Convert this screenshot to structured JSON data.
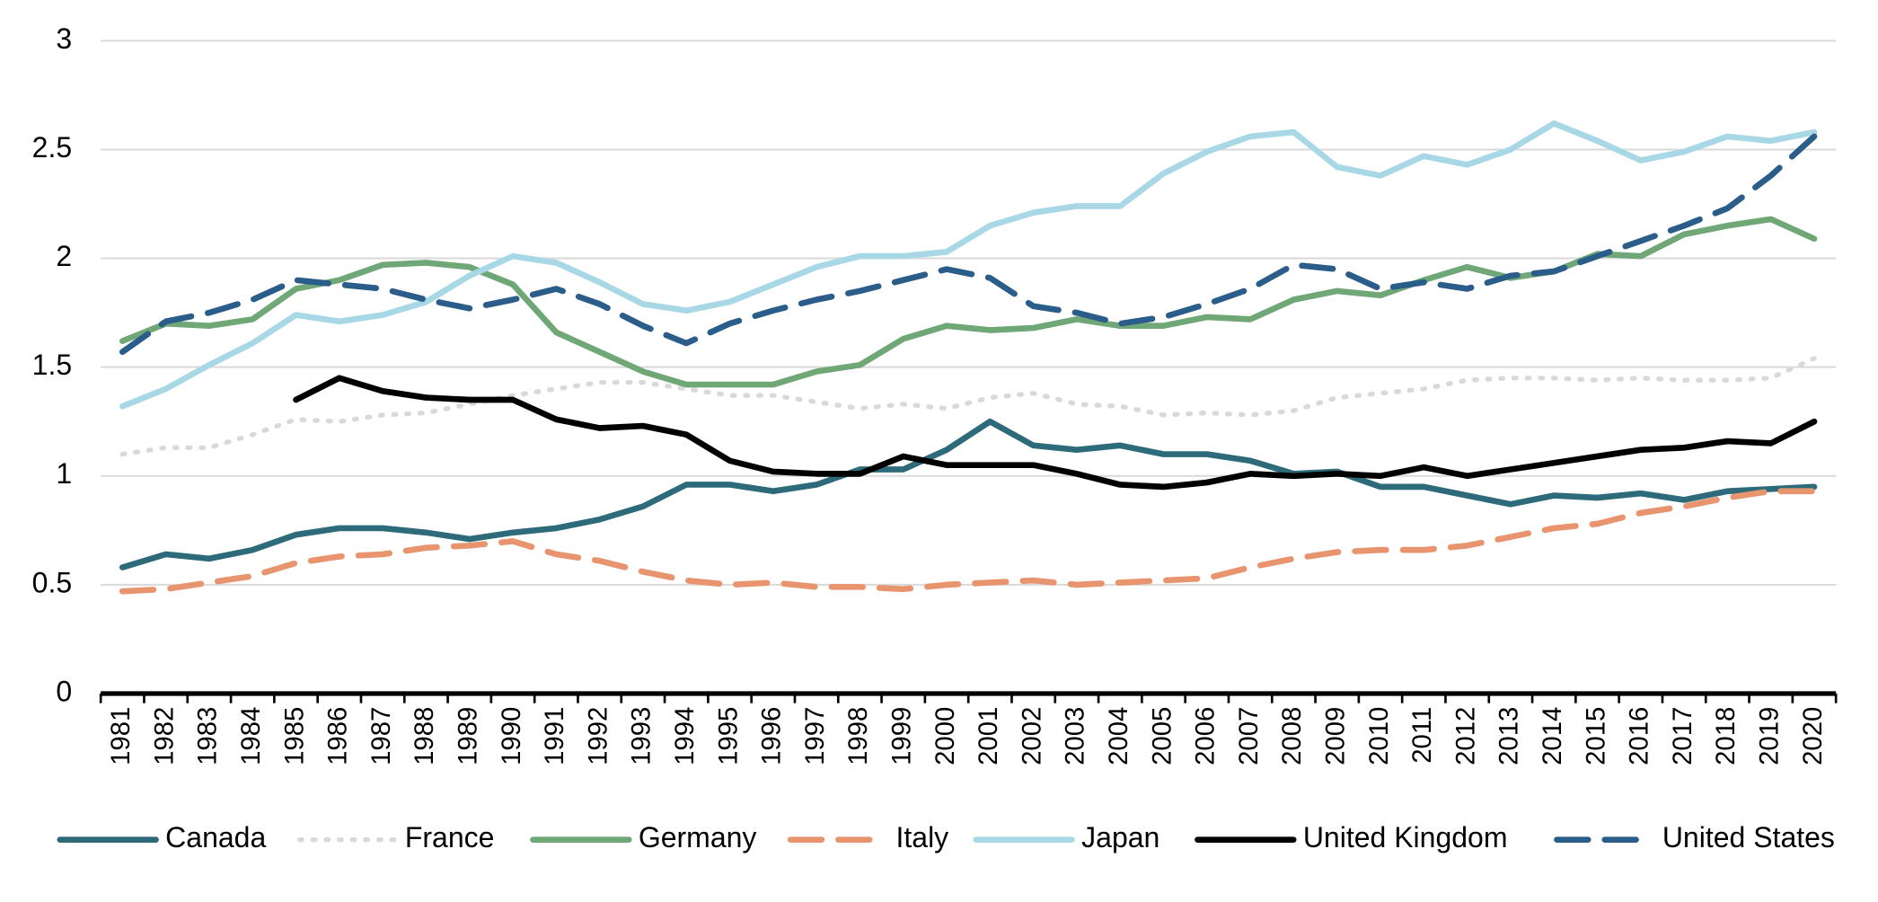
{
  "chart_data": {
    "type": "line",
    "categories": [
      "1981",
      "1982",
      "1983",
      "1984",
      "1985",
      "1986",
      "1987",
      "1988",
      "1989",
      "1990",
      "1991",
      "1992",
      "1993",
      "1994",
      "1995",
      "1996",
      "1997",
      "1998",
      "1999",
      "2000",
      "2001",
      "2002",
      "2003",
      "2004",
      "2005",
      "2006",
      "2007",
      "2008",
      "2009",
      "2010",
      "2011",
      "2012",
      "2013",
      "2014",
      "2015",
      "2016",
      "2017",
      "2018",
      "2019",
      "2020"
    ],
    "ylim": [
      0,
      3
    ],
    "yticks": [
      0,
      0.5,
      1,
      1.5,
      2,
      2.5,
      3
    ],
    "grid": true,
    "legend": "bottom",
    "series": [
      {
        "name": "Canada",
        "color": "#2e6b7a",
        "style": "solid",
        "values": [
          0.58,
          0.64,
          0.62,
          0.66,
          0.73,
          0.76,
          0.76,
          0.74,
          0.71,
          0.74,
          0.76,
          0.8,
          0.86,
          0.96,
          0.96,
          0.93,
          0.96,
          1.03,
          1.03,
          1.12,
          1.25,
          1.14,
          1.12,
          1.14,
          1.1,
          1.1,
          1.07,
          1.01,
          1.02,
          0.95,
          0.95,
          0.91,
          0.87,
          0.91,
          0.9,
          0.92,
          0.89,
          0.93,
          0.94,
          0.95
        ]
      },
      {
        "name": "France",
        "color": "#d9d9d9",
        "style": "dotted",
        "values": [
          1.1,
          1.13,
          1.13,
          1.19,
          1.26,
          1.25,
          1.28,
          1.29,
          1.33,
          1.37,
          1.4,
          1.43,
          1.43,
          1.4,
          1.37,
          1.37,
          1.34,
          1.31,
          1.33,
          1.31,
          1.36,
          1.38,
          1.33,
          1.32,
          1.28,
          1.29,
          1.28,
          1.3,
          1.36,
          1.38,
          1.4,
          1.44,
          1.45,
          1.45,
          1.44,
          1.45,
          1.44,
          1.44,
          1.45,
          1.54
        ]
      },
      {
        "name": "Germany",
        "color": "#6fa776",
        "style": "solid",
        "values": [
          1.62,
          1.7,
          1.69,
          1.72,
          1.86,
          1.9,
          1.97,
          1.98,
          1.96,
          1.88,
          1.66,
          1.57,
          1.48,
          1.42,
          1.42,
          1.42,
          1.48,
          1.51,
          1.63,
          1.69,
          1.67,
          1.68,
          1.72,
          1.69,
          1.69,
          1.73,
          1.72,
          1.81,
          1.85,
          1.83,
          1.9,
          1.96,
          1.91,
          1.94,
          2.02,
          2.01,
          2.11,
          2.15,
          2.18,
          2.09
        ]
      },
      {
        "name": "Italy",
        "color": "#e8956f",
        "style": "dashed",
        "values": [
          0.47,
          0.48,
          0.51,
          0.54,
          0.6,
          0.63,
          0.64,
          0.67,
          0.68,
          0.7,
          0.64,
          0.61,
          0.56,
          0.52,
          0.5,
          0.51,
          0.49,
          0.49,
          0.48,
          0.5,
          0.51,
          0.52,
          0.5,
          0.51,
          0.52,
          0.53,
          0.58,
          0.62,
          0.65,
          0.66,
          0.66,
          0.68,
          0.72,
          0.76,
          0.78,
          0.83,
          0.86,
          0.9,
          0.93,
          0.93
        ]
      },
      {
        "name": "Japan",
        "color": "#a8d8e6",
        "style": "solid",
        "values": [
          1.32,
          1.4,
          1.51,
          1.61,
          1.74,
          1.71,
          1.74,
          1.8,
          1.92,
          2.01,
          1.98,
          1.89,
          1.79,
          1.76,
          1.8,
          1.88,
          1.96,
          2.01,
          2.01,
          2.03,
          2.15,
          2.21,
          2.24,
          2.24,
          2.39,
          2.49,
          2.56,
          2.58,
          2.42,
          2.38,
          2.47,
          2.43,
          2.5,
          2.62,
          2.54,
          2.45,
          2.49,
          2.56,
          2.54,
          2.58
        ]
      },
      {
        "name": "United Kingdom",
        "color": "#000000",
        "style": "solid",
        "values": [
          null,
          null,
          null,
          null,
          1.35,
          1.45,
          1.39,
          1.36,
          1.35,
          1.35,
          1.26,
          1.22,
          1.23,
          1.19,
          1.07,
          1.02,
          1.01,
          1.01,
          1.09,
          1.05,
          1.05,
          1.05,
          1.01,
          0.96,
          0.95,
          0.97,
          1.01,
          1.0,
          1.01,
          1.0,
          1.04,
          1.0,
          1.03,
          1.06,
          1.09,
          1.12,
          1.13,
          1.16,
          1.15,
          1.25
        ]
      },
      {
        "name": "United States",
        "color": "#2b5d8a",
        "style": "dashed",
        "values": [
          1.57,
          1.71,
          1.75,
          1.81,
          1.9,
          1.88,
          1.86,
          1.81,
          1.77,
          1.81,
          1.86,
          1.79,
          1.69,
          1.61,
          1.7,
          1.76,
          1.81,
          1.85,
          1.9,
          1.95,
          1.91,
          1.78,
          1.75,
          1.7,
          1.73,
          1.79,
          1.86,
          1.97,
          1.95,
          1.86,
          1.89,
          1.86,
          1.92,
          1.94,
          2.01,
          2.08,
          2.15,
          2.23,
          2.38,
          2.56
        ]
      }
    ]
  }
}
